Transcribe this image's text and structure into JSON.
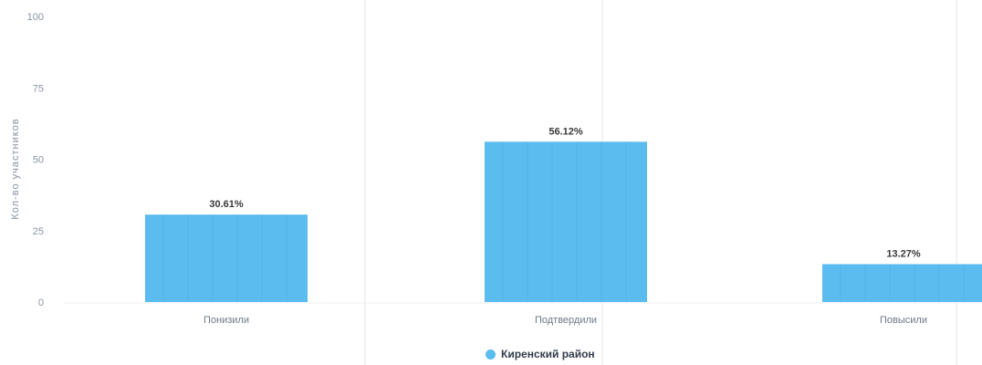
{
  "chart_data": {
    "type": "bar",
    "categories": [
      "Понизили",
      "Подтвердили",
      "Повысили"
    ],
    "series": [
      {
        "name": "Киренский район",
        "values": [
          30.61,
          56.12,
          13.27
        ],
        "labels": [
          "30.61%",
          "56.12%",
          "13.27%"
        ]
      }
    ],
    "ylabel": "Кол-во участников",
    "ylim": [
      0,
      100
    ],
    "yticks": [
      0,
      25,
      50,
      75,
      100
    ],
    "grid": true,
    "legend": "bottom",
    "colors": {
      "bar": "#5bbcef",
      "grid": "#e3e6ea"
    }
  }
}
